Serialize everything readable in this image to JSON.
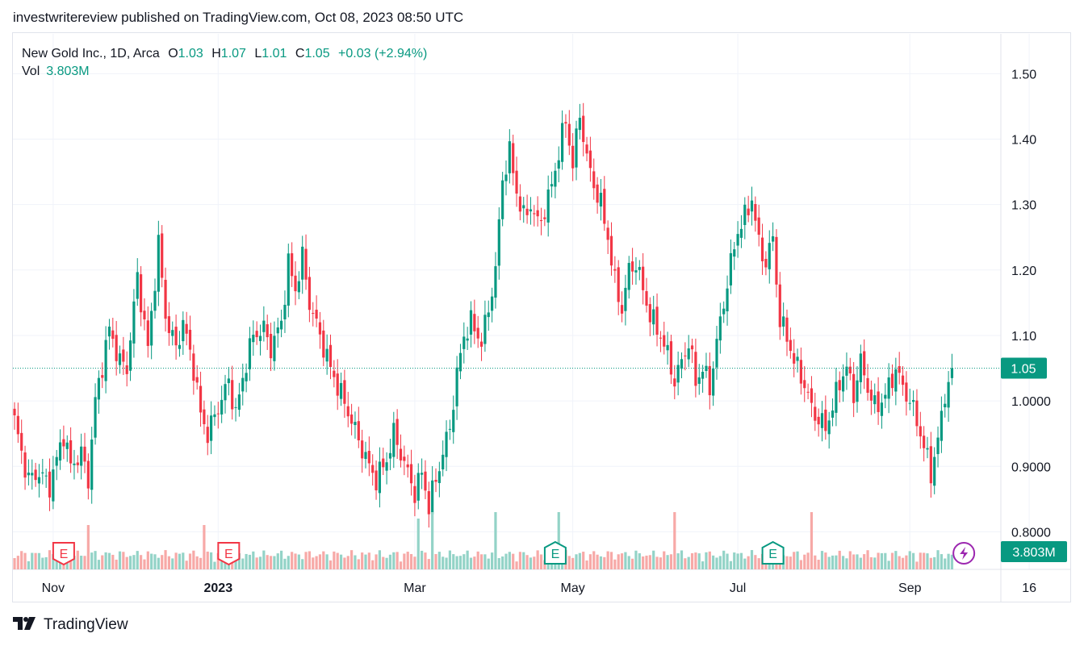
{
  "header": {
    "published_text": "investwritereview published on TradingView.com, Oct 08, 2023 08:50 UTC"
  },
  "legend": {
    "symbol": "New Gold Inc., 1D, Arca",
    "o_label": "O",
    "o_value": "1.03",
    "h_label": "H",
    "h_value": "1.07",
    "l_label": "L",
    "l_value": "1.01",
    "c_label": "C",
    "c_value": "1.05",
    "change": "+0.03 (+2.94%)",
    "vol_label": "Vol",
    "vol_value": "3.803M"
  },
  "footer": {
    "brand": "TradingView"
  },
  "colors": {
    "up": "#089981",
    "down": "#f23645",
    "up_vol": "#93d3c7",
    "down_vol": "#f7a9a7",
    "grid": "#f0f3fa"
  },
  "chart_data": {
    "type": "candlestick",
    "symbol": "New Gold Inc.",
    "interval": "1D",
    "exchange": "Arca",
    "ylim": [
      0.75,
      1.53
    ],
    "y_ticks": [
      "1.50",
      "1.40",
      "1.30",
      "1.20",
      "1.10",
      "1.0000",
      "0.9000",
      "0.8000"
    ],
    "x_ticks": [
      {
        "label": "Nov",
        "day": 11
      },
      {
        "label": "2023",
        "day": 58
      },
      {
        "label": "Mar",
        "day": 114
      },
      {
        "label": "May",
        "day": 159
      },
      {
        "label": "Jul",
        "day": 206
      },
      {
        "label": "Sep",
        "day": 255
      },
      {
        "label": "16",
        "day": 289
      }
    ],
    "last_price": "1.05",
    "last_volume": "3.803M",
    "anchors": [
      [
        0,
        0.97
      ],
      [
        2,
        0.92
      ],
      [
        4,
        0.88
      ],
      [
        7,
        0.89
      ],
      [
        10,
        0.87
      ],
      [
        14,
        0.95
      ],
      [
        16,
        0.9
      ],
      [
        19,
        0.92
      ],
      [
        21,
        0.88
      ],
      [
        23,
        1.0
      ],
      [
        27,
        1.11
      ],
      [
        30,
        1.06
      ],
      [
        32,
        1.05
      ],
      [
        35,
        1.19
      ],
      [
        38,
        1.08
      ],
      [
        41,
        1.24
      ],
      [
        43,
        1.13
      ],
      [
        46,
        1.08
      ],
      [
        48,
        1.12
      ],
      [
        51,
        1.05
      ],
      [
        53,
        0.98
      ],
      [
        55,
        0.95
      ],
      [
        58,
        0.99
      ],
      [
        61,
        1.03
      ],
      [
        63,
        0.98
      ],
      [
        66,
        1.06
      ],
      [
        68,
        1.1
      ],
      [
        71,
        1.11
      ],
      [
        73,
        1.08
      ],
      [
        76,
        1.12
      ],
      [
        78,
        1.21
      ],
      [
        80,
        1.17
      ],
      [
        82,
        1.22
      ],
      [
        84,
        1.15
      ],
      [
        87,
        1.1
      ],
      [
        90,
        1.05
      ],
      [
        93,
        1.01
      ],
      [
        96,
        0.97
      ],
      [
        98,
        0.94
      ],
      [
        101,
        0.9
      ],
      [
        103,
        0.88
      ],
      [
        106,
        0.91
      ],
      [
        108,
        0.95
      ],
      [
        110,
        0.92
      ],
      [
        112,
        0.89
      ],
      [
        114,
        0.86
      ],
      [
        116,
        0.89
      ],
      [
        118,
        0.84
      ],
      [
        120,
        0.88
      ],
      [
        122,
        0.92
      ],
      [
        124,
        0.96
      ],
      [
        126,
        1.04
      ],
      [
        128,
        1.1
      ],
      [
        130,
        1.12
      ],
      [
        133,
        1.09
      ],
      [
        135,
        1.14
      ],
      [
        137,
        1.2
      ],
      [
        139,
        1.34
      ],
      [
        141,
        1.38
      ],
      [
        143,
        1.32
      ],
      [
        145,
        1.28
      ],
      [
        147,
        1.3
      ],
      [
        149,
        1.27
      ],
      [
        151,
        1.29
      ],
      [
        153,
        1.33
      ],
      [
        155,
        1.38
      ],
      [
        157,
        1.43
      ],
      [
        159,
        1.36
      ],
      [
        161,
        1.44
      ],
      [
        163,
        1.37
      ],
      [
        165,
        1.33
      ],
      [
        167,
        1.3
      ],
      [
        169,
        1.25
      ],
      [
        171,
        1.18
      ],
      [
        173,
        1.14
      ],
      [
        175,
        1.2
      ],
      [
        177,
        1.21
      ],
      [
        179,
        1.17
      ],
      [
        181,
        1.13
      ],
      [
        184,
        1.1
      ],
      [
        186,
        1.07
      ],
      [
        188,
        1.03
      ],
      [
        190,
        1.06
      ],
      [
        192,
        1.09
      ],
      [
        194,
        1.03
      ],
      [
        196,
        1.05
      ],
      [
        198,
        1.02
      ],
      [
        200,
        1.09
      ],
      [
        202,
        1.15
      ],
      [
        204,
        1.21
      ],
      [
        206,
        1.26
      ],
      [
        208,
        1.28
      ],
      [
        210,
        1.31
      ],
      [
        212,
        1.24
      ],
      [
        214,
        1.21
      ],
      [
        216,
        1.25
      ],
      [
        218,
        1.12
      ],
      [
        220,
        1.1
      ],
      [
        222,
        1.06
      ],
      [
        224,
        1.04
      ],
      [
        227,
        0.99
      ],
      [
        229,
        0.97
      ],
      [
        231,
        0.96
      ],
      [
        233,
        0.99
      ],
      [
        235,
        1.03
      ],
      [
        237,
        1.05
      ],
      [
        239,
        1.01
      ],
      [
        241,
        1.06
      ],
      [
        243,
        1.02
      ],
      [
        245,
        0.99
      ],
      [
        247,
        1.0
      ],
      [
        249,
        1.02
      ],
      [
        251,
        1.05
      ],
      [
        253,
        1.02
      ],
      [
        255,
        1.0
      ],
      [
        257,
        0.97
      ],
      [
        259,
        0.93
      ],
      [
        261,
        0.89
      ],
      [
        263,
        0.94
      ],
      [
        265,
        1.01
      ],
      [
        267,
        1.05
      ]
    ],
    "earnings_markers": [
      {
        "label": "E",
        "day": 14,
        "kind": "down"
      },
      {
        "label": "E",
        "day": 61,
        "kind": "down"
      },
      {
        "label": "E",
        "day": 154,
        "kind": "up"
      },
      {
        "label": "E",
        "day": 216,
        "kind": "up"
      }
    ]
  }
}
